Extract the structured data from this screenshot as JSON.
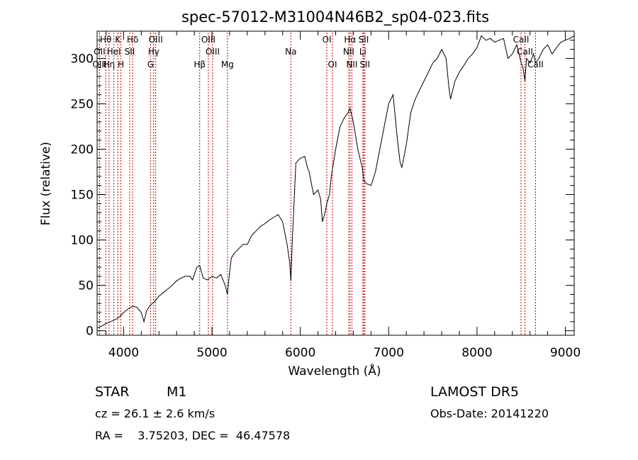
{
  "chart_data": {
    "type": "line",
    "title": "spec-57012-M31004N46B2_sp04-023.fits",
    "xlabel": "Wavelength (Å)",
    "ylabel": "Flux (relative)",
    "xlim": [
      3700,
      9100
    ],
    "ylim": [
      -5,
      330
    ],
    "xticks": [
      4000,
      5000,
      6000,
      7000,
      8000,
      9000
    ],
    "xtick_labels": [
      "4000",
      "5000",
      "6000",
      "7000",
      "8000",
      "9000"
    ],
    "yticks": [
      0,
      50,
      100,
      150,
      200,
      250,
      300
    ],
    "ytick_labels": [
      "0",
      "50",
      "100",
      "150",
      "200",
      "250",
      "300"
    ],
    "grid": false,
    "series": [
      {
        "x": [
          3700,
          3750,
          3800,
          3850,
          3900,
          3950,
          4000,
          4050,
          4100,
          4150,
          4200,
          4230,
          4260,
          4300,
          4350,
          4400,
          4450,
          4500,
          4550,
          4600,
          4650,
          4700,
          4750,
          4780,
          4800,
          4830,
          4861,
          4880,
          4900,
          4950,
          5000,
          5050,
          5100,
          5150,
          5175,
          5200,
          5220,
          5250,
          5300,
          5350,
          5400,
          5450,
          5500,
          5550,
          5600,
          5650,
          5700,
          5750,
          5800,
          5850,
          5880,
          5893,
          5910,
          5950,
          6000,
          6050,
          6080,
          6100,
          6150,
          6200,
          6230,
          6250,
          6280,
          6300,
          6330,
          6350,
          6400,
          6450,
          6500,
          6540,
          6563,
          6600,
          6650,
          6700,
          6720,
          6750,
          6800,
          6850,
          6900,
          6950,
          7000,
          7050,
          7100,
          7130,
          7150,
          7200,
          7250,
          7300,
          7350,
          7400,
          7450,
          7500,
          7550,
          7600,
          7650,
          7680,
          7700,
          7750,
          7800,
          7850,
          7900,
          7950,
          8000,
          8050,
          8100,
          8150,
          8200,
          8250,
          8300,
          8350,
          8400,
          8450,
          8500,
          8520,
          8542,
          8560,
          8600,
          8640,
          8662,
          8700,
          8750,
          8800,
          8850,
          8900,
          8950,
          9000,
          9050,
          9100
        ],
        "y": [
          3,
          5,
          8,
          10,
          12,
          15,
          20,
          24,
          27,
          26,
          20,
          10,
          22,
          28,
          32,
          38,
          42,
          46,
          50,
          55,
          58,
          60,
          60,
          56,
          62,
          70,
          72,
          65,
          58,
          56,
          60,
          58,
          62,
          50,
          40,
          65,
          80,
          85,
          90,
          95,
          95,
          105,
          110,
          115,
          118,
          122,
          125,
          128,
          120,
          95,
          75,
          55,
          100,
          185,
          190,
          192,
          180,
          175,
          150,
          155,
          145,
          120,
          130,
          140,
          150,
          170,
          200,
          225,
          235,
          240,
          245,
          230,
          200,
          180,
          165,
          162,
          160,
          175,
          200,
          225,
          250,
          260,
          210,
          185,
          180,
          205,
          240,
          255,
          265,
          275,
          285,
          295,
          300,
          310,
          300,
          270,
          255,
          275,
          285,
          292,
          300,
          305,
          312,
          325,
          320,
          322,
          318,
          320,
          322,
          300,
          305,
          315,
          295,
          290,
          275,
          300,
          295,
          305,
          295,
          300,
          310,
          315,
          305,
          312,
          318,
          320,
          322,
          325
        ]
      }
    ],
    "line_markers": [
      {
        "label": "Hθ",
        "wl": 3798,
        "row": 0
      },
      {
        "label": "K",
        "wl": 3934,
        "row": 0
      },
      {
        "label": "Hδ",
        "wl": 4102,
        "row": 0
      },
      {
        "label": "OIII",
        "wl": 4363,
        "row": 0
      },
      {
        "label": "OIII",
        "wl": 4959,
        "row": 0
      },
      {
        "label": "OI",
        "wl": 6300,
        "row": 0
      },
      {
        "label": "Hα",
        "wl": 6563,
        "row": 0
      },
      {
        "label": "SII",
        "wl": 6717,
        "row": 0
      },
      {
        "label": "CaII",
        "wl": 8498,
        "row": 0
      },
      {
        "label": "OII",
        "wl": 3727,
        "row": 1
      },
      {
        "label": "HeI",
        "wl": 3889,
        "row": 1
      },
      {
        "label": "SII",
        "wl": 4069,
        "row": 1
      },
      {
        "label": "Hγ",
        "wl": 4340,
        "row": 1
      },
      {
        "label": "OIII",
        "wl": 5007,
        "row": 1
      },
      {
        "label": "Na",
        "wl": 5893,
        "row": 1
      },
      {
        "label": "NII",
        "wl": 6548,
        "row": 1
      },
      {
        "label": "Li",
        "wl": 6708,
        "row": 1
      },
      {
        "label": "CaII",
        "wl": 8542,
        "row": 1
      },
      {
        "label": "OIII",
        "wl": 3727,
        "row": 2
      },
      {
        "label": "Hη",
        "wl": 3835,
        "row": 2
      },
      {
        "label": "H",
        "wl": 3969,
        "row": 2
      },
      {
        "label": "G",
        "wl": 4305,
        "row": 2
      },
      {
        "label": "Hβ",
        "wl": 4861,
        "row": 2
      },
      {
        "label": "Mg",
        "wl": 5175,
        "row": 2
      },
      {
        "label": "OI",
        "wl": 6364,
        "row": 2
      },
      {
        "label": "NII",
        "wl": 6584,
        "row": 2
      },
      {
        "label": "SII",
        "wl": 6731,
        "row": 2
      },
      {
        "label": "CaII",
        "wl": 8662,
        "row": 2
      }
    ],
    "marker_color": "#cc0000"
  },
  "info": {
    "object_class": "STAR",
    "subclass": "M1",
    "survey": "LAMOST  DR5",
    "cz": "cz = 26.1 ± 2.6 km/s",
    "obs_date": "Obs-Date: 20141220",
    "coords": "RA =    3.75203, DEC =  46.47578"
  }
}
